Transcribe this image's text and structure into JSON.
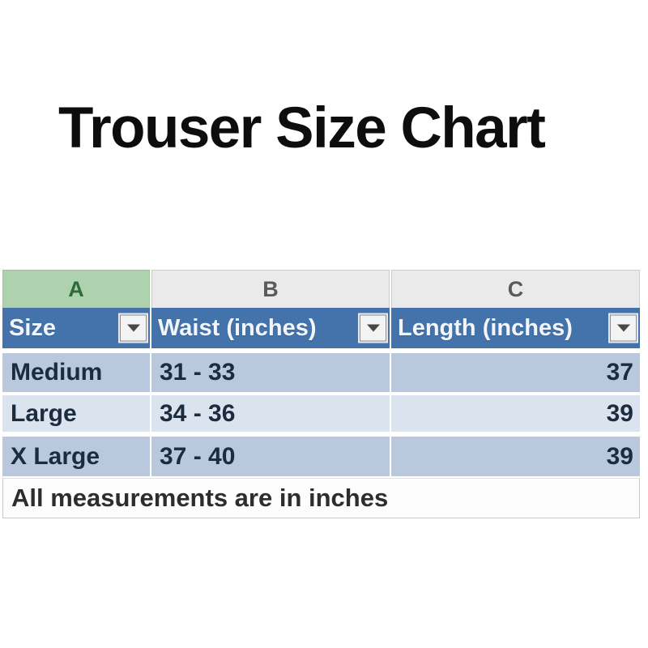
{
  "title": "Trouser Size Chart",
  "sheet": {
    "column_letters": [
      "A",
      "B",
      "C"
    ],
    "selected_column": "A",
    "headers": [
      {
        "label": "Size"
      },
      {
        "label": "Waist (inches)"
      },
      {
        "label": "Length (inches)"
      }
    ],
    "rows": [
      [
        "Medium",
        "31 - 33",
        "37"
      ],
      [
        "Large",
        "34 - 36",
        "39"
      ],
      [
        "X Large",
        "37 - 40",
        "39"
      ]
    ],
    "footer_note": "All measurements are in inches"
  },
  "colors": {
    "header_fill": "#4472aa",
    "header_text": "#f2f6fb",
    "selected_column_fill": "#afd2ae",
    "selected_column_text": "#2e6b3a",
    "column_letter_fill": "#eaeaea",
    "row_band_dark": "#b9c8dd",
    "row_band_light": "#dbe3ef",
    "cell_text": "#1c2b3e",
    "title_text": "#0d0d0d"
  }
}
